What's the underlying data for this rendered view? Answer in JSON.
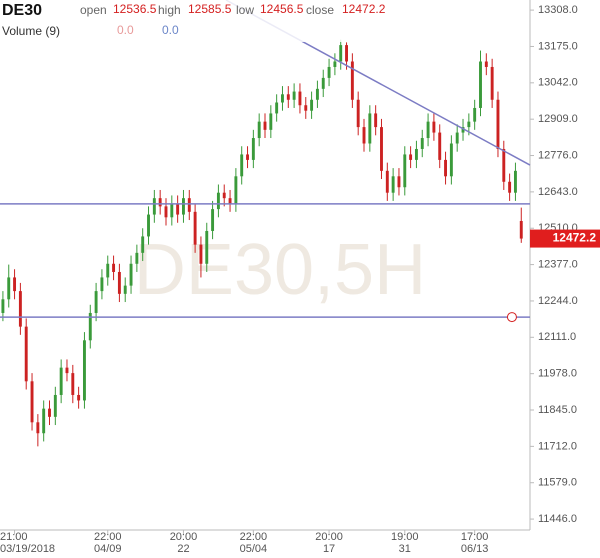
{
  "chart_data": {
    "type": "candlestick",
    "symbol": "DE30",
    "header_labels": [
      "open",
      "high",
      "low",
      "close"
    ],
    "volume_label": "Volume (9)",
    "volume_values": [
      {
        "value": 0,
        "label": "0.0",
        "color": "#e89a9a"
      },
      {
        "value": 0,
        "label": "0.0",
        "color": "#6b86c8"
      }
    ],
    "watermark": "DE30,5H",
    "up_color": "#3a9a3a",
    "down_color": "#cc2222",
    "value_color": "#d42020",
    "line_color": "#7c7cc4",
    "open": [
      12200,
      12250,
      12330,
      12280,
      12150,
      11950,
      11800,
      11760,
      11850,
      11820,
      11900,
      12000,
      11980,
      11900,
      11880,
      12100,
      12200,
      12280,
      12330,
      12380,
      12350,
      12270,
      12300,
      12380,
      12420,
      12480,
      12560,
      12620,
      12590,
      12550,
      12600,
      12560,
      12620,
      12570,
      12450,
      12380,
      12500,
      12580,
      12640,
      12620,
      12600,
      12700,
      12780,
      12760,
      12840,
      12900,
      12870,
      12930,
      12970,
      13000,
      12980,
      13010,
      12960,
      12940,
      12980,
      13020,
      13060,
      13100,
      13120,
      13180,
      13120,
      12980,
      12880,
      12820,
      12930,
      12880,
      12720,
      12640,
      12700,
      12660,
      12780,
      12760,
      12800,
      12840,
      12900,
      12860,
      12760,
      12700,
      12820,
      12860,
      12880,
      12900,
      12950,
      13120,
      13100,
      12980,
      12800,
      12680,
      12640,
      12536.5
    ],
    "high": [
      12280,
      12377,
      12360,
      12310,
      12180,
      11980,
      11830,
      11880,
      11880,
      11930,
      12030,
      12030,
      12010,
      11930,
      12130,
      12230,
      12310,
      12360,
      12410,
      12410,
      12380,
      12330,
      12410,
      12450,
      12510,
      12590,
      12650,
      12650,
      12620,
      12630,
      12630,
      12650,
      12650,
      12600,
      12480,
      12530,
      12610,
      12670,
      12670,
      12650,
      12730,
      12810,
      12810,
      12870,
      12930,
      12930,
      12960,
      13000,
      13030,
      13030,
      13040,
      13040,
      12990,
      13010,
      13050,
      13090,
      13130,
      13150,
      13200,
      13190,
      13150,
      13010,
      12910,
      12960,
      12960,
      12910,
      12750,
      12730,
      12730,
      12810,
      12810,
      12830,
      12870,
      12930,
      12930,
      12890,
      12790,
      12850,
      12890,
      12910,
      12930,
      12980,
      13160,
      13150,
      13130,
      13010,
      12830,
      12710,
      12750,
      12585.5
    ],
    "low": [
      12170,
      12220,
      12250,
      12120,
      11920,
      11770,
      11712,
      11730,
      11790,
      11790,
      11870,
      11950,
      11870,
      11850,
      11850,
      12070,
      12170,
      12250,
      12300,
      12320,
      12240,
      12240,
      12270,
      12350,
      12390,
      12450,
      12530,
      12560,
      12520,
      12520,
      12530,
      12530,
      12540,
      12420,
      12330,
      12350,
      12470,
      12550,
      12590,
      12570,
      12570,
      12670,
      12730,
      12730,
      12810,
      12840,
      12840,
      12900,
      12940,
      12950,
      12950,
      12930,
      12910,
      12910,
      12950,
      12990,
      13030,
      13070,
      13090,
      13090,
      12950,
      12850,
      12790,
      12790,
      12850,
      12690,
      12610,
      12610,
      12630,
      12630,
      12730,
      12730,
      12770,
      12810,
      12830,
      12730,
      12670,
      12670,
      12790,
      12830,
      12850,
      12870,
      12920,
      13070,
      12950,
      12770,
      12650,
      12610,
      12610,
      12456.5
    ],
    "close": [
      12250,
      12330,
      12280,
      12150,
      11950,
      11800,
      11760,
      11850,
      11820,
      11900,
      12000,
      11980,
      11900,
      11880,
      12100,
      12200,
      12280,
      12330,
      12380,
      12350,
      12270,
      12300,
      12380,
      12420,
      12480,
      12560,
      12620,
      12590,
      12550,
      12600,
      12560,
      12620,
      12570,
      12450,
      12380,
      12500,
      12580,
      12640,
      12620,
      12600,
      12700,
      12780,
      12760,
      12840,
      12900,
      12870,
      12930,
      12970,
      13000,
      12980,
      13010,
      12960,
      12940,
      12980,
      13020,
      13060,
      13100,
      13120,
      13180,
      13120,
      12980,
      12880,
      12820,
      12930,
      12880,
      12720,
      12640,
      12700,
      12660,
      12780,
      12760,
      12800,
      12840,
      12900,
      12860,
      12760,
      12700,
      12820,
      12860,
      12880,
      12900,
      12950,
      13120,
      13100,
      12980,
      12800,
      12680,
      12640,
      12720,
      12472.2
    ],
    "xlim": [
      -0.5,
      90.5
    ],
    "xticks": [
      {
        "value": 2,
        "label": "21:00",
        "date": "03/19/2018"
      },
      {
        "value": 18,
        "label": "22:00",
        "date": "04/09"
      },
      {
        "value": 31,
        "label": "20:00",
        "date": "22"
      },
      {
        "value": 43,
        "label": "22:00",
        "date": "05/04"
      },
      {
        "value": 56,
        "label": "20:00",
        "date": "17"
      },
      {
        "value": 69,
        "label": "19:00",
        "date": "31"
      },
      {
        "value": 81,
        "label": "17:00",
        "date": "06/13"
      }
    ],
    "ylim": [
      11406,
      13345
    ],
    "yticks": [
      {
        "value": 11446,
        "label": "11446.0"
      },
      {
        "value": 11579,
        "label": "11579.0"
      },
      {
        "value": 11712,
        "label": "11712.0"
      },
      {
        "value": 11845,
        "label": "11845.0"
      },
      {
        "value": 11978,
        "label": "11978.0"
      },
      {
        "value": 12111,
        "label": "12111.0"
      },
      {
        "value": 12244,
        "label": "12244.0"
      },
      {
        "value": 12377,
        "label": "12377.0"
      },
      {
        "value": 12510,
        "label": "12510.0"
      },
      {
        "value": 12643,
        "label": "12643.0"
      },
      {
        "value": 12776,
        "label": "12776.0"
      },
      {
        "value": 12909,
        "label": "12909.0"
      },
      {
        "value": 13042,
        "label": "13042.0"
      },
      {
        "value": 13175,
        "label": "13175.0"
      },
      {
        "value": 13308,
        "label": "13308.0"
      }
    ],
    "hlines": [
      12599,
      12185
    ],
    "trendline": {
      "x": [
        38.3,
        90.5
      ],
      "y": [
        13345,
        12741
      ]
    },
    "alert": {
      "x": 87.4,
      "y": 12185
    },
    "grid": false
  }
}
